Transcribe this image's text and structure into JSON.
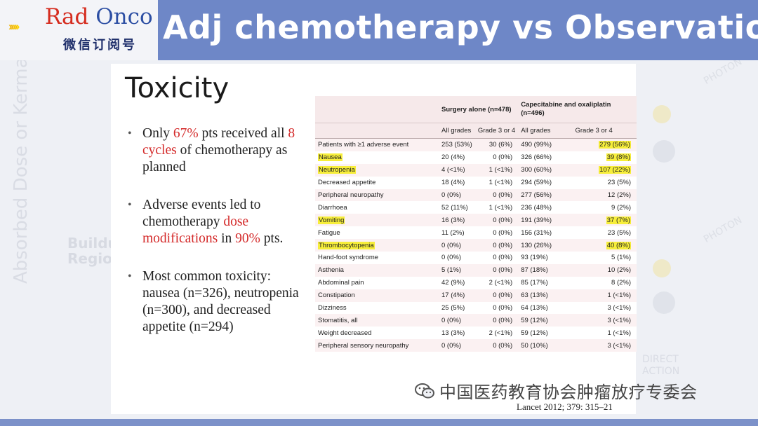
{
  "header": {
    "logo_part1": "Rad",
    "logo_part2": "Onco",
    "logo_sub": "微信订阅号",
    "title": "Adj chemotherapy vs Observation"
  },
  "background": {
    "vertical_text": "Absorbed Dose or Kerma",
    "buildup_line1": "Buildu",
    "buildup_line2": "Regio",
    "right_top": "...",
    "right_direct1": "DIRECT",
    "right_direct2": "ACTION",
    "photon1": "PHOTON",
    "photon2": "PHOTON"
  },
  "slide": {
    "title": "Toxicity",
    "bullets": [
      {
        "parts": [
          {
            "t": "Only "
          },
          {
            "t": "67%",
            "red": true
          },
          {
            "t": " pts received all "
          },
          {
            "t": "8 cycles",
            "red": true
          },
          {
            "t": " of chemotherapy as planned"
          }
        ]
      },
      {
        "parts": [
          {
            "t": "Adverse events led to chemotherapy "
          },
          {
            "t": "dose modifications",
            "red": true
          },
          {
            "t": " in "
          },
          {
            "t": "90%",
            "red": true
          },
          {
            "t": " pts."
          }
        ]
      },
      {
        "parts": [
          {
            "t": "Most common toxicity: nausea (n=326), neutropenia (n=300), and decreased appetite (n=294)"
          }
        ]
      }
    ],
    "table": {
      "group_headers": [
        "Surgery alone (n=478)",
        "Capecitabine and oxaliplatin (n=496)"
      ],
      "sub_headers": [
        "All grades",
        "Grade 3 or 4",
        "All grades",
        "Grade 3 or 4"
      ],
      "rows": [
        {
          "label": "Patients with ≥1 adverse event",
          "v": [
            "253 (53%)",
            "30 (6%)",
            "490 (99%)",
            "279 (56%)"
          ],
          "hl_label": false,
          "hl_last": true
        },
        {
          "label": "Nausea",
          "v": [
            "20 (4%)",
            "0 (0%)",
            "326 (66%)",
            "39 (8%)"
          ],
          "hl_label": true,
          "hl_last": true
        },
        {
          "label": "Neutropenia",
          "v": [
            "4 (<1%)",
            "1 (<1%)",
            "300 (60%)",
            "107 (22%)"
          ],
          "hl_label": true,
          "hl_last": true
        },
        {
          "label": "Decreased appetite",
          "v": [
            "18 (4%)",
            "1 (<1%)",
            "294 (59%)",
            "23 (5%)"
          ],
          "hl_label": false,
          "hl_last": false
        },
        {
          "label": "Peripheral neuropathy",
          "v": [
            "0 (0%)",
            "0 (0%)",
            "277 (56%)",
            "12 (2%)"
          ],
          "hl_label": false,
          "hl_last": false
        },
        {
          "label": "Diarrhoea",
          "v": [
            "52 (11%)",
            "1 (<1%)",
            "236 (48%)",
            "9 (2%)"
          ],
          "hl_label": false,
          "hl_last": false
        },
        {
          "label": "Vomiting",
          "v": [
            "16 (3%)",
            "0 (0%)",
            "191 (39%)",
            "37 (7%)"
          ],
          "hl_label": true,
          "hl_last": true
        },
        {
          "label": "Fatigue",
          "v": [
            "11 (2%)",
            "0 (0%)",
            "156 (31%)",
            "23 (5%)"
          ],
          "hl_label": false,
          "hl_last": false
        },
        {
          "label": "Thrombocytopenia",
          "v": [
            "0 (0%)",
            "0 (0%)",
            "130 (26%)",
            "40 (8%)"
          ],
          "hl_label": true,
          "hl_last": true
        },
        {
          "label": "Hand-foot syndrome",
          "v": [
            "0 (0%)",
            "0 (0%)",
            "93 (19%)",
            "5 (1%)"
          ],
          "hl_label": false,
          "hl_last": false
        },
        {
          "label": "Asthenia",
          "v": [
            "5 (1%)",
            "0 (0%)",
            "87 (18%)",
            "10 (2%)"
          ],
          "hl_label": false,
          "hl_last": false
        },
        {
          "label": "Abdominal pain",
          "v": [
            "42 (9%)",
            "2 (<1%)",
            "85 (17%)",
            "8 (2%)"
          ],
          "hl_label": false,
          "hl_last": false
        },
        {
          "label": "Constipation",
          "v": [
            "17 (4%)",
            "0 (0%)",
            "63 (13%)",
            "1 (<1%)"
          ],
          "hl_label": false,
          "hl_last": false
        },
        {
          "label": "Dizziness",
          "v": [
            "25 (5%)",
            "0 (0%)",
            "64 (13%)",
            "3 (<1%)"
          ],
          "hl_label": false,
          "hl_last": false
        },
        {
          "label": "Stomatitis, all",
          "v": [
            "0 (0%)",
            "0 (0%)",
            "59 (12%)",
            "3 (<1%)"
          ],
          "hl_label": false,
          "hl_last": false
        },
        {
          "label": "Weight decreased",
          "v": [
            "13 (3%)",
            "2 (<1%)",
            "59 (12%)",
            "1 (<1%)"
          ],
          "hl_label": false,
          "hl_last": false
        },
        {
          "label": "Peripheral sensory neuropathy",
          "v": [
            "0 (0%)",
            "0 (0%)",
            "50 (10%)",
            "3 (<1%)"
          ],
          "hl_label": false,
          "hl_last": false
        }
      ]
    },
    "citation": "Lancet 2012; 379: 315–21"
  },
  "watermark": "中国医药教育协会肿瘤放疗专委会",
  "colors": {
    "header": "#6e87c7",
    "highlight": "#f7ee3a",
    "accent_red": "#d42a2a"
  }
}
